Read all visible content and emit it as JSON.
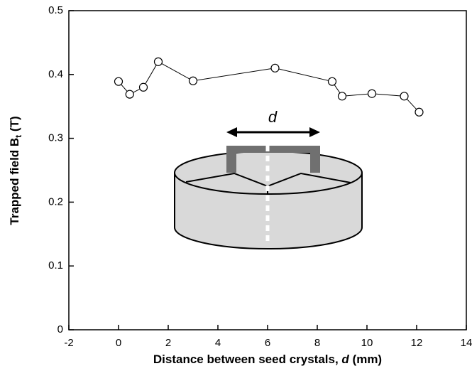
{
  "chart_data": {
    "type": "line",
    "xlabel": [
      "Distance between seed crystals, ",
      "d",
      " (mm)"
    ],
    "ylabel": [
      "Trapped field B",
      "t",
      " (T)"
    ],
    "series": [
      {
        "color": "#000000",
        "x": [
          0,
          0.45,
          1.0,
          1.6,
          3.0,
          6.3,
          8.6,
          9.0,
          10.2,
          11.5,
          12.1
        ],
        "values": [
          0.389,
          0.369,
          0.38,
          0.42,
          0.39,
          0.41,
          0.389,
          0.366,
          0.37,
          0.366,
          0.341
        ]
      }
    ],
    "xlim": [
      -2,
      14
    ],
    "xticks": [
      -2,
      0,
      2,
      4,
      6,
      8,
      10,
      12,
      14
    ],
    "ylim": [
      0,
      0.5
    ],
    "yticks": [
      0,
      0.1,
      0.2,
      0.3,
      0.4,
      0.5
    ],
    "inset_label": "d"
  }
}
